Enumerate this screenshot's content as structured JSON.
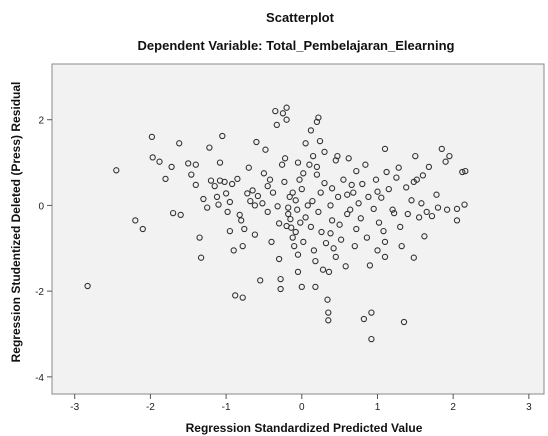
{
  "chart_data": {
    "type": "scatter",
    "title": "Scatterplot",
    "subtitle": "Dependent Variable: Total_Pembelajaran_Elearning",
    "xlabel": "Regression Standardized Predicted Value",
    "ylabel": "Regression Studentized Deleted (Press) Residual",
    "xlim": [
      -3.3,
      3.2
    ],
    "ylim": [
      -4.4,
      3.3
    ],
    "x_ticks": [
      -3,
      -2,
      -1,
      0,
      1,
      2,
      3
    ],
    "y_ticks": [
      -4,
      -2,
      0,
      2
    ],
    "grid": false,
    "background": "#f2f2f2",
    "marker_color": "#333333",
    "points": [
      [
        -2.83,
        -1.88
      ],
      [
        -2.45,
        0.82
      ],
      [
        -2.2,
        -0.35
      ],
      [
        -2.1,
        -0.55
      ],
      [
        -1.98,
        1.6
      ],
      [
        -1.97,
        1.12
      ],
      [
        -1.88,
        1.02
      ],
      [
        -1.8,
        0.62
      ],
      [
        -1.72,
        0.9
      ],
      [
        -1.7,
        -0.18
      ],
      [
        -1.62,
        1.45
      ],
      [
        -1.6,
        -0.22
      ],
      [
        -1.5,
        0.98
      ],
      [
        -1.46,
        0.72
      ],
      [
        -1.4,
        0.95
      ],
      [
        -1.35,
        -0.75
      ],
      [
        -1.33,
        -1.22
      ],
      [
        -1.3,
        0.15
      ],
      [
        -1.25,
        -0.05
      ],
      [
        -1.22,
        1.35
      ],
      [
        -1.2,
        0.58
      ],
      [
        -1.15,
        0.45
      ],
      [
        -1.12,
        0.2
      ],
      [
        -1.1,
        0.02
      ],
      [
        -1.08,
        1.0
      ],
      [
        -1.05,
        1.62
      ],
      [
        -1.02,
        0.55
      ],
      [
        -1.0,
        0.28
      ],
      [
        -0.98,
        -0.15
      ],
      [
        -0.95,
        0.08
      ],
      [
        -0.92,
        0.5
      ],
      [
        -0.9,
        -1.05
      ],
      [
        -0.88,
        -2.1
      ],
      [
        -0.85,
        0.62
      ],
      [
        -0.82,
        -0.22
      ],
      [
        -0.8,
        -0.35
      ],
      [
        -0.78,
        -0.95
      ],
      [
        -0.78,
        -2.15
      ],
      [
        -0.76,
        -0.55
      ],
      [
        -0.72,
        0.28
      ],
      [
        -0.7,
        0.88
      ],
      [
        -0.68,
        0.1
      ],
      [
        -0.65,
        0.35
      ],
      [
        -0.62,
        -0.68
      ],
      [
        -0.6,
        1.48
      ],
      [
        -0.58,
        0.22
      ],
      [
        -0.55,
        -1.75
      ],
      [
        -0.52,
        0.05
      ],
      [
        -0.5,
        0.75
      ],
      [
        -0.48,
        1.3
      ],
      [
        -0.45,
        -0.15
      ],
      [
        -0.42,
        0.6
      ],
      [
        -0.4,
        -0.85
      ],
      [
        -0.38,
        0.3
      ],
      [
        -0.35,
        2.2
      ],
      [
        -0.33,
        1.88
      ],
      [
        -0.32,
        -0.02
      ],
      [
        -0.3,
        -0.42
      ],
      [
        -0.28,
        -1.72
      ],
      [
        -0.28,
        -1.95
      ],
      [
        -0.26,
        0.95
      ],
      [
        -0.25,
        2.15
      ],
      [
        -0.23,
        0.55
      ],
      [
        -0.22,
        1.1
      ],
      [
        -0.2,
        2.0
      ],
      [
        -0.2,
        2.28
      ],
      [
        -0.18,
        -0.05
      ],
      [
        -0.18,
        -0.2
      ],
      [
        -0.16,
        0.2
      ],
      [
        -0.15,
        -0.32
      ],
      [
        -0.14,
        -0.52
      ],
      [
        -0.12,
        0.3
      ],
      [
        -0.12,
        -0.75
      ],
      [
        -0.1,
        -0.95
      ],
      [
        -0.08,
        0.12
      ],
      [
        -0.08,
        -0.62
      ],
      [
        -0.06,
        -0.1
      ],
      [
        -0.05,
        1.0
      ],
      [
        -0.05,
        -1.15
      ],
      [
        -0.03,
        0.6
      ],
      [
        -0.02,
        -0.4
      ],
      [
        0.0,
        -1.9
      ],
      [
        0.0,
        0.38
      ],
      [
        0.02,
        -0.85
      ],
      [
        0.05,
        1.45
      ],
      [
        0.05,
        -0.28
      ],
      [
        0.08,
        0.0
      ],
      [
        0.1,
        0.95
      ],
      [
        0.12,
        -0.5
      ],
      [
        0.14,
        0.1
      ],
      [
        0.15,
        1.15
      ],
      [
        0.16,
        -1.05
      ],
      [
        0.18,
        -1.3
      ],
      [
        0.18,
        -1.9
      ],
      [
        0.2,
        1.95
      ],
      [
        0.2,
        0.72
      ],
      [
        0.22,
        2.05
      ],
      [
        0.22,
        -0.15
      ],
      [
        0.24,
        1.5
      ],
      [
        0.25,
        0.3
      ],
      [
        0.26,
        -0.62
      ],
      [
        0.28,
        -1.5
      ],
      [
        0.3,
        1.25
      ],
      [
        0.3,
        0.52
      ],
      [
        0.32,
        -0.88
      ],
      [
        0.34,
        -2.2
      ],
      [
        0.35,
        -2.5
      ],
      [
        0.35,
        -2.68
      ],
      [
        0.36,
        -1.55
      ],
      [
        0.38,
        0.0
      ],
      [
        0.4,
        0.4
      ],
      [
        0.4,
        -0.35
      ],
      [
        0.42,
        -1.0
      ],
      [
        0.45,
        -1.2
      ],
      [
        0.47,
        1.15
      ],
      [
        0.48,
        0.2
      ],
      [
        0.5,
        -0.45
      ],
      [
        0.52,
        -0.8
      ],
      [
        0.55,
        0.6
      ],
      [
        0.58,
        -1.42
      ],
      [
        0.6,
        0.25
      ],
      [
        0.62,
        1.1
      ],
      [
        0.64,
        -0.1
      ],
      [
        0.66,
        0.48
      ],
      [
        0.7,
        -0.95
      ],
      [
        0.72,
        0.8
      ],
      [
        0.75,
        0.05
      ],
      [
        0.78,
        -0.3
      ],
      [
        0.8,
        0.5
      ],
      [
        0.82,
        -2.65
      ],
      [
        0.84,
        0.95
      ],
      [
        0.86,
        -0.75
      ],
      [
        0.88,
        0.2
      ],
      [
        0.9,
        -1.4
      ],
      [
        0.92,
        -2.5
      ],
      [
        0.92,
        -3.12
      ],
      [
        0.95,
        -0.08
      ],
      [
        0.98,
        0.6
      ],
      [
        1.0,
        -1.05
      ],
      [
        1.02,
        -0.4
      ],
      [
        1.05,
        0.18
      ],
      [
        1.08,
        -0.6
      ],
      [
        1.1,
        -1.2
      ],
      [
        1.1,
        1.32
      ],
      [
        1.12,
        0.78
      ],
      [
        1.15,
        0.38
      ],
      [
        1.2,
        -0.1
      ],
      [
        1.22,
        -0.18
      ],
      [
        1.25,
        0.65
      ],
      [
        1.28,
        0.88
      ],
      [
        1.3,
        -0.5
      ],
      [
        1.32,
        -0.95
      ],
      [
        1.35,
        -2.72
      ],
      [
        1.38,
        0.42
      ],
      [
        1.4,
        -0.2
      ],
      [
        1.45,
        0.12
      ],
      [
        1.48,
        -1.22
      ],
      [
        1.5,
        1.15
      ],
      [
        1.52,
        0.6
      ],
      [
        1.55,
        -0.28
      ],
      [
        1.58,
        0.05
      ],
      [
        1.6,
        0.7
      ],
      [
        1.62,
        -0.72
      ],
      [
        1.65,
        -0.15
      ],
      [
        1.68,
        0.9
      ],
      [
        1.72,
        -0.25
      ],
      [
        1.78,
        0.25
      ],
      [
        1.8,
        -0.05
      ],
      [
        1.85,
        1.32
      ],
      [
        1.9,
        1.02
      ],
      [
        1.92,
        -0.1
      ],
      [
        1.95,
        1.15
      ],
      [
        2.05,
        -0.35
      ],
      [
        2.12,
        0.78
      ],
      [
        2.15,
        0.02
      ],
      [
        2.16,
        0.8
      ],
      [
        2.05,
        -0.08
      ],
      [
        1.48,
        0.55
      ],
      [
        0.68,
        0.3
      ],
      [
        0.02,
        0.75
      ],
      [
        -0.45,
        0.45
      ],
      [
        -0.95,
        -0.6
      ],
      [
        -1.4,
        0.48
      ],
      [
        -0.2,
        -0.48
      ],
      [
        0.38,
        -0.65
      ],
      [
        1.1,
        -0.85
      ],
      [
        0.6,
        -0.2
      ],
      [
        -0.62,
        0.0
      ],
      [
        0.12,
        1.75
      ],
      [
        -0.05,
        -1.55
      ],
      [
        0.45,
        1.05
      ],
      [
        1.0,
        0.32
      ],
      [
        -0.3,
        -1.25
      ],
      [
        0.72,
        -0.55
      ],
      [
        -1.08,
        0.58
      ],
      [
        0.2,
        0.9
      ]
    ]
  }
}
